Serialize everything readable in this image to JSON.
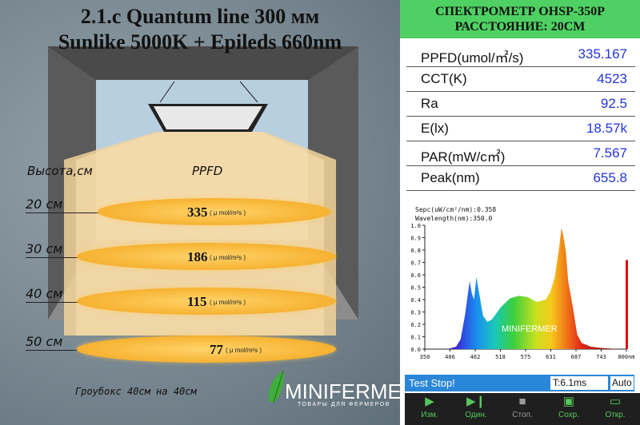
{
  "left": {
    "title_line1": "2.1.c Quantum line 300 мм",
    "title_line2": "Sunlike 5000K + Epileds 660nm",
    "col_height": "Высота,см",
    "col_ppfd": "PPFD",
    "rows": [
      {
        "height": "20 см",
        "value": "335",
        "unit": "( μ mol/m²s )"
      },
      {
        "height": "30 см",
        "value": "186",
        "unit": "( μ mol/m²s )"
      },
      {
        "height": "40 см",
        "value": "115",
        "unit": "( μ mol/m²s )"
      },
      {
        "height": "50 см",
        "value": "77",
        "unit": "( μ mol/m²s )"
      }
    ],
    "growbox": "Гроубокс 40см на 40см",
    "logo": {
      "text": "MINIFERMER",
      "sub": "ТОВАРЫ ДЛЯ ФЕРМЕРОВ"
    }
  },
  "right": {
    "header_line1": "СПЕКТРОМЕТР OHSP-350P",
    "header_line2": "РАССТОЯНИЕ: 20СМ",
    "measurements": [
      {
        "key": "PPFD(umol/㎡/s)",
        "value": "335.167"
      },
      {
        "key": "CCT(K)",
        "value": "4523"
      },
      {
        "key": "Ra",
        "value": "92.5"
      },
      {
        "key": "E(lx)",
        "value": "18.57k"
      },
      {
        "key": "PAR(mW/c㎡)",
        "value": "7.567"
      },
      {
        "key": "Peak(nm)",
        "value": "655.8"
      }
    ],
    "status_text": "Test Stop!",
    "time_field": "T:6.1ms",
    "auto_field": "Auto",
    "toolbar": [
      {
        "label": "Изм.",
        "icon": "play-icon"
      },
      {
        "label": "Один.",
        "icon": "step-icon"
      },
      {
        "label": "Стоп.",
        "icon": "stop-icon"
      },
      {
        "label": "Сохр.",
        "icon": "save-icon"
      },
      {
        "label": "Откр.",
        "icon": "open-icon"
      }
    ],
    "colors": {
      "header_bg": "#4ed162",
      "value_text": "#2233dd",
      "status_bg": "#2a86d8"
    }
  },
  "chart_data": {
    "type": "area",
    "title": "Sepc(uW/cm²/nm):0.358",
    "subtitle": "Wavelength(nm):350.0",
    "xlabel": "",
    "ylabel": "",
    "xlim": [
      350,
      800
    ],
    "ylim": [
      0,
      1.0
    ],
    "x_ticks": [
      "350",
      "406",
      "462",
      "518",
      "575",
      "631",
      "687",
      "743",
      "800nm"
    ],
    "y_ticks": [
      "0.0",
      "0.1",
      "0.2",
      "0.3",
      "0.4",
      "0.5",
      "0.6",
      "0.7",
      "0.8",
      "0.9",
      "1.0"
    ],
    "x": [
      380,
      400,
      420,
      430,
      440,
      450,
      455,
      460,
      465,
      470,
      480,
      490,
      500,
      520,
      540,
      560,
      580,
      600,
      620,
      630,
      640,
      650,
      655,
      660,
      665,
      670,
      680,
      690,
      700,
      720,
      740,
      780,
      800
    ],
    "y": [
      0.0,
      0.0,
      0.02,
      0.08,
      0.28,
      0.55,
      0.45,
      0.4,
      0.58,
      0.48,
      0.27,
      0.22,
      0.24,
      0.34,
      0.41,
      0.43,
      0.42,
      0.38,
      0.4,
      0.46,
      0.58,
      0.82,
      0.98,
      0.9,
      0.78,
      0.55,
      0.35,
      0.12,
      0.05,
      0.02,
      0.01,
      0.0,
      0.0
    ],
    "watermark": "MINIFERMER"
  }
}
